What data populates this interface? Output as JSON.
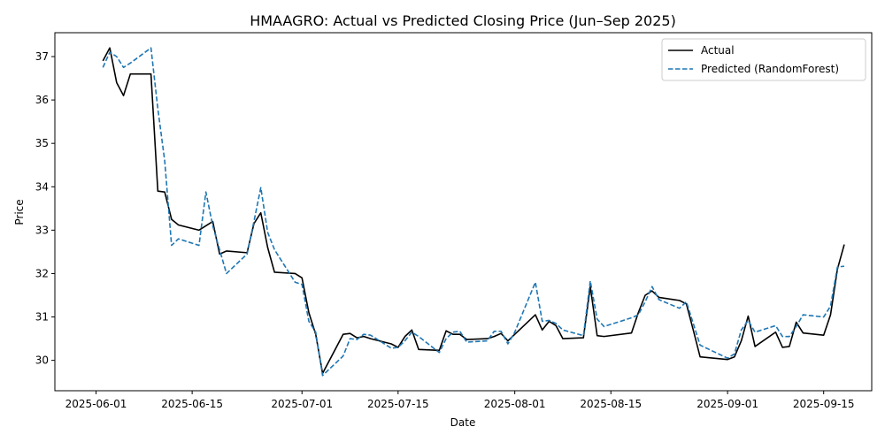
{
  "chart_data": {
    "type": "line",
    "title": "HMAAGRO: Actual vs Predicted Closing Price (Jun–Sep 2025)",
    "xlabel": "Date",
    "ylabel": "Price",
    "x_range": [
      "2025-05-26",
      "2025-09-22"
    ],
    "ylim": [
      29.3,
      37.55
    ],
    "xticks": [
      "2025-06-01",
      "2025-06-15",
      "2025-07-01",
      "2025-07-15",
      "2025-08-01",
      "2025-08-15",
      "2025-09-01",
      "2025-09-15"
    ],
    "yticks": [
      30,
      31,
      32,
      33,
      34,
      35,
      36,
      37
    ],
    "grid": false,
    "legend_position": "top-right",
    "series": [
      {
        "name": "Actual",
        "color": "#000000",
        "style": "solid",
        "points": [
          [
            "2025-06-02",
            36.9
          ],
          [
            "2025-06-03",
            37.2
          ],
          [
            "2025-06-04",
            36.4
          ],
          [
            "2025-06-05",
            36.1
          ],
          [
            "2025-06-06",
            36.6
          ],
          [
            "2025-06-09",
            36.6
          ],
          [
            "2025-06-10",
            33.9
          ],
          [
            "2025-06-11",
            33.88
          ],
          [
            "2025-06-12",
            33.25
          ],
          [
            "2025-06-13",
            33.12
          ],
          [
            "2025-06-16",
            33.0
          ],
          [
            "2025-06-17",
            33.1
          ],
          [
            "2025-06-18",
            33.2
          ],
          [
            "2025-06-19",
            32.45
          ],
          [
            "2025-06-20",
            32.52
          ],
          [
            "2025-06-23",
            32.48
          ],
          [
            "2025-06-24",
            33.15
          ],
          [
            "2025-06-25",
            33.4
          ],
          [
            "2025-06-26",
            32.6
          ],
          [
            "2025-06-27",
            32.03
          ],
          [
            "2025-06-30",
            32.0
          ],
          [
            "2025-07-01",
            31.9
          ],
          [
            "2025-07-02",
            31.1
          ],
          [
            "2025-07-03",
            30.6
          ],
          [
            "2025-07-04",
            29.7
          ],
          [
            "2025-07-07",
            30.6
          ],
          [
            "2025-07-08",
            30.62
          ],
          [
            "2025-07-09",
            30.52
          ],
          [
            "2025-07-10",
            30.55
          ],
          [
            "2025-07-11",
            30.5
          ],
          [
            "2025-07-14",
            30.38
          ],
          [
            "2025-07-15",
            30.3
          ],
          [
            "2025-07-16",
            30.55
          ],
          [
            "2025-07-17",
            30.7
          ],
          [
            "2025-07-18",
            30.25
          ],
          [
            "2025-07-21",
            30.23
          ],
          [
            "2025-07-22",
            30.68
          ],
          [
            "2025-07-23",
            30.6
          ],
          [
            "2025-07-24",
            30.6
          ],
          [
            "2025-07-25",
            30.48
          ],
          [
            "2025-07-28",
            30.5
          ],
          [
            "2025-07-29",
            30.55
          ],
          [
            "2025-07-30",
            30.62
          ],
          [
            "2025-07-31",
            30.45
          ],
          [
            "2025-08-01",
            30.6
          ],
          [
            "2025-08-04",
            31.05
          ],
          [
            "2025-08-05",
            30.7
          ],
          [
            "2025-08-06",
            30.9
          ],
          [
            "2025-08-07",
            30.8
          ],
          [
            "2025-08-08",
            30.5
          ],
          [
            "2025-08-11",
            30.52
          ],
          [
            "2025-08-12",
            31.7
          ],
          [
            "2025-08-13",
            30.57
          ],
          [
            "2025-08-14",
            30.55
          ],
          [
            "2025-08-18",
            30.63
          ],
          [
            "2025-08-19",
            31.1
          ],
          [
            "2025-08-20",
            31.5
          ],
          [
            "2025-08-21",
            31.6
          ],
          [
            "2025-08-22",
            31.45
          ],
          [
            "2025-08-25",
            31.38
          ],
          [
            "2025-08-26",
            31.3
          ],
          [
            "2025-08-27",
            30.7
          ],
          [
            "2025-08-28",
            30.08
          ],
          [
            "2025-09-01",
            30.02
          ],
          [
            "2025-09-02",
            30.08
          ],
          [
            "2025-09-03",
            30.45
          ],
          [
            "2025-09-04",
            31.02
          ],
          [
            "2025-09-05",
            30.32
          ],
          [
            "2025-09-08",
            30.65
          ],
          [
            "2025-09-09",
            30.3
          ],
          [
            "2025-09-10",
            30.32
          ],
          [
            "2025-09-11",
            30.88
          ],
          [
            "2025-09-12",
            30.63
          ],
          [
            "2025-09-15",
            30.58
          ],
          [
            "2025-09-16",
            31.05
          ],
          [
            "2025-09-17",
            32.1
          ],
          [
            "2025-09-18",
            32.67
          ]
        ]
      },
      {
        "name": "Predicted (RandomForest)",
        "color": "#1f77b4",
        "style": "dashed",
        "points": [
          [
            "2025-06-02",
            36.75
          ],
          [
            "2025-06-03",
            37.1
          ],
          [
            "2025-06-04",
            37.0
          ],
          [
            "2025-06-05",
            36.75
          ],
          [
            "2025-06-06",
            36.85
          ],
          [
            "2025-06-09",
            37.2
          ],
          [
            "2025-06-10",
            35.8
          ],
          [
            "2025-06-11",
            34.6
          ],
          [
            "2025-06-12",
            32.65
          ],
          [
            "2025-06-13",
            32.8
          ],
          [
            "2025-06-16",
            32.65
          ],
          [
            "2025-06-17",
            33.88
          ],
          [
            "2025-06-18",
            33.1
          ],
          [
            "2025-06-19",
            32.55
          ],
          [
            "2025-06-20",
            32.0
          ],
          [
            "2025-06-23",
            32.45
          ],
          [
            "2025-06-24",
            33.2
          ],
          [
            "2025-06-25",
            33.98
          ],
          [
            "2025-06-26",
            32.95
          ],
          [
            "2025-06-27",
            32.55
          ],
          [
            "2025-06-30",
            31.8
          ],
          [
            "2025-07-01",
            31.75
          ],
          [
            "2025-07-02",
            30.9
          ],
          [
            "2025-07-03",
            30.65
          ],
          [
            "2025-07-04",
            29.65
          ],
          [
            "2025-07-07",
            30.1
          ],
          [
            "2025-07-08",
            30.5
          ],
          [
            "2025-07-09",
            30.48
          ],
          [
            "2025-07-10",
            30.6
          ],
          [
            "2025-07-11",
            30.58
          ],
          [
            "2025-07-14",
            30.28
          ],
          [
            "2025-07-15",
            30.3
          ],
          [
            "2025-07-16",
            30.45
          ],
          [
            "2025-07-17",
            30.65
          ],
          [
            "2025-07-18",
            30.55
          ],
          [
            "2025-07-21",
            30.18
          ],
          [
            "2025-07-22",
            30.5
          ],
          [
            "2025-07-23",
            30.65
          ],
          [
            "2025-07-24",
            30.67
          ],
          [
            "2025-07-25",
            30.42
          ],
          [
            "2025-07-28",
            30.45
          ],
          [
            "2025-07-29",
            30.67
          ],
          [
            "2025-07-30",
            30.67
          ],
          [
            "2025-07-31",
            30.38
          ],
          [
            "2025-08-01",
            30.65
          ],
          [
            "2025-08-04",
            31.8
          ],
          [
            "2025-08-05",
            30.9
          ],
          [
            "2025-08-06",
            30.92
          ],
          [
            "2025-08-07",
            30.85
          ],
          [
            "2025-08-08",
            30.7
          ],
          [
            "2025-08-11",
            30.57
          ],
          [
            "2025-08-12",
            31.83
          ],
          [
            "2025-08-13",
            30.95
          ],
          [
            "2025-08-14",
            30.78
          ],
          [
            "2025-08-18",
            30.98
          ],
          [
            "2025-08-19",
            31.05
          ],
          [
            "2025-08-20",
            31.35
          ],
          [
            "2025-08-21",
            31.7
          ],
          [
            "2025-08-22",
            31.4
          ],
          [
            "2025-08-25",
            31.2
          ],
          [
            "2025-08-26",
            31.35
          ],
          [
            "2025-08-27",
            30.85
          ],
          [
            "2025-08-28",
            30.35
          ],
          [
            "2025-09-01",
            30.05
          ],
          [
            "2025-09-02",
            30.15
          ],
          [
            "2025-09-03",
            30.7
          ],
          [
            "2025-09-04",
            30.92
          ],
          [
            "2025-09-05",
            30.65
          ],
          [
            "2025-09-08",
            30.8
          ],
          [
            "2025-09-09",
            30.55
          ],
          [
            "2025-09-10",
            30.55
          ],
          [
            "2025-09-11",
            30.78
          ],
          [
            "2025-09-12",
            31.05
          ],
          [
            "2025-09-15",
            31.0
          ],
          [
            "2025-09-16",
            31.25
          ],
          [
            "2025-09-17",
            32.15
          ],
          [
            "2025-09-18",
            32.17
          ]
        ]
      }
    ]
  }
}
